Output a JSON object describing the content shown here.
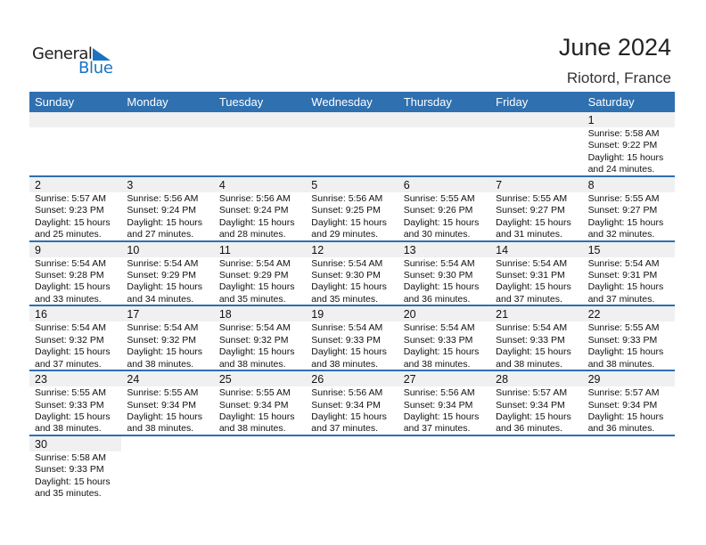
{
  "logo": {
    "line1": "General",
    "line2": "Blue"
  },
  "header": {
    "title": "June 2024",
    "location": "Riotord, France"
  },
  "weekdays": [
    "Sunday",
    "Monday",
    "Tuesday",
    "Wednesday",
    "Thursday",
    "Friday",
    "Saturday"
  ],
  "colors": {
    "header_bg": "#2e70b0",
    "strip_bg": "#f0f0f0",
    "logo_blue": "#1a73c0"
  },
  "weeks": [
    [
      null,
      null,
      null,
      null,
      null,
      null,
      {
        "day": "1",
        "sunrise": "Sunrise: 5:58 AM",
        "sunset": "Sunset: 9:22 PM",
        "daylight1": "Daylight: 15 hours",
        "daylight2": "and 24 minutes."
      }
    ],
    [
      {
        "day": "2",
        "sunrise": "Sunrise: 5:57 AM",
        "sunset": "Sunset: 9:23 PM",
        "daylight1": "Daylight: 15 hours",
        "daylight2": "and 25 minutes."
      },
      {
        "day": "3",
        "sunrise": "Sunrise: 5:56 AM",
        "sunset": "Sunset: 9:24 PM",
        "daylight1": "Daylight: 15 hours",
        "daylight2": "and 27 minutes."
      },
      {
        "day": "4",
        "sunrise": "Sunrise: 5:56 AM",
        "sunset": "Sunset: 9:24 PM",
        "daylight1": "Daylight: 15 hours",
        "daylight2": "and 28 minutes."
      },
      {
        "day": "5",
        "sunrise": "Sunrise: 5:56 AM",
        "sunset": "Sunset: 9:25 PM",
        "daylight1": "Daylight: 15 hours",
        "daylight2": "and 29 minutes."
      },
      {
        "day": "6",
        "sunrise": "Sunrise: 5:55 AM",
        "sunset": "Sunset: 9:26 PM",
        "daylight1": "Daylight: 15 hours",
        "daylight2": "and 30 minutes."
      },
      {
        "day": "7",
        "sunrise": "Sunrise: 5:55 AM",
        "sunset": "Sunset: 9:27 PM",
        "daylight1": "Daylight: 15 hours",
        "daylight2": "and 31 minutes."
      },
      {
        "day": "8",
        "sunrise": "Sunrise: 5:55 AM",
        "sunset": "Sunset: 9:27 PM",
        "daylight1": "Daylight: 15 hours",
        "daylight2": "and 32 minutes."
      }
    ],
    [
      {
        "day": "9",
        "sunrise": "Sunrise: 5:54 AM",
        "sunset": "Sunset: 9:28 PM",
        "daylight1": "Daylight: 15 hours",
        "daylight2": "and 33 minutes."
      },
      {
        "day": "10",
        "sunrise": "Sunrise: 5:54 AM",
        "sunset": "Sunset: 9:29 PM",
        "daylight1": "Daylight: 15 hours",
        "daylight2": "and 34 minutes."
      },
      {
        "day": "11",
        "sunrise": "Sunrise: 5:54 AM",
        "sunset": "Sunset: 9:29 PM",
        "daylight1": "Daylight: 15 hours",
        "daylight2": "and 35 minutes."
      },
      {
        "day": "12",
        "sunrise": "Sunrise: 5:54 AM",
        "sunset": "Sunset: 9:30 PM",
        "daylight1": "Daylight: 15 hours",
        "daylight2": "and 35 minutes."
      },
      {
        "day": "13",
        "sunrise": "Sunrise: 5:54 AM",
        "sunset": "Sunset: 9:30 PM",
        "daylight1": "Daylight: 15 hours",
        "daylight2": "and 36 minutes."
      },
      {
        "day": "14",
        "sunrise": "Sunrise: 5:54 AM",
        "sunset": "Sunset: 9:31 PM",
        "daylight1": "Daylight: 15 hours",
        "daylight2": "and 37 minutes."
      },
      {
        "day": "15",
        "sunrise": "Sunrise: 5:54 AM",
        "sunset": "Sunset: 9:31 PM",
        "daylight1": "Daylight: 15 hours",
        "daylight2": "and 37 minutes."
      }
    ],
    [
      {
        "day": "16",
        "sunrise": "Sunrise: 5:54 AM",
        "sunset": "Sunset: 9:32 PM",
        "daylight1": "Daylight: 15 hours",
        "daylight2": "and 37 minutes."
      },
      {
        "day": "17",
        "sunrise": "Sunrise: 5:54 AM",
        "sunset": "Sunset: 9:32 PM",
        "daylight1": "Daylight: 15 hours",
        "daylight2": "and 38 minutes."
      },
      {
        "day": "18",
        "sunrise": "Sunrise: 5:54 AM",
        "sunset": "Sunset: 9:32 PM",
        "daylight1": "Daylight: 15 hours",
        "daylight2": "and 38 minutes."
      },
      {
        "day": "19",
        "sunrise": "Sunrise: 5:54 AM",
        "sunset": "Sunset: 9:33 PM",
        "daylight1": "Daylight: 15 hours",
        "daylight2": "and 38 minutes."
      },
      {
        "day": "20",
        "sunrise": "Sunrise: 5:54 AM",
        "sunset": "Sunset: 9:33 PM",
        "daylight1": "Daylight: 15 hours",
        "daylight2": "and 38 minutes."
      },
      {
        "day": "21",
        "sunrise": "Sunrise: 5:54 AM",
        "sunset": "Sunset: 9:33 PM",
        "daylight1": "Daylight: 15 hours",
        "daylight2": "and 38 minutes."
      },
      {
        "day": "22",
        "sunrise": "Sunrise: 5:55 AM",
        "sunset": "Sunset: 9:33 PM",
        "daylight1": "Daylight: 15 hours",
        "daylight2": "and 38 minutes."
      }
    ],
    [
      {
        "day": "23",
        "sunrise": "Sunrise: 5:55 AM",
        "sunset": "Sunset: 9:33 PM",
        "daylight1": "Daylight: 15 hours",
        "daylight2": "and 38 minutes."
      },
      {
        "day": "24",
        "sunrise": "Sunrise: 5:55 AM",
        "sunset": "Sunset: 9:34 PM",
        "daylight1": "Daylight: 15 hours",
        "daylight2": "and 38 minutes."
      },
      {
        "day": "25",
        "sunrise": "Sunrise: 5:55 AM",
        "sunset": "Sunset: 9:34 PM",
        "daylight1": "Daylight: 15 hours",
        "daylight2": "and 38 minutes."
      },
      {
        "day": "26",
        "sunrise": "Sunrise: 5:56 AM",
        "sunset": "Sunset: 9:34 PM",
        "daylight1": "Daylight: 15 hours",
        "daylight2": "and 37 minutes."
      },
      {
        "day": "27",
        "sunrise": "Sunrise: 5:56 AM",
        "sunset": "Sunset: 9:34 PM",
        "daylight1": "Daylight: 15 hours",
        "daylight2": "and 37 minutes."
      },
      {
        "day": "28",
        "sunrise": "Sunrise: 5:57 AM",
        "sunset": "Sunset: 9:34 PM",
        "daylight1": "Daylight: 15 hours",
        "daylight2": "and 36 minutes."
      },
      {
        "day": "29",
        "sunrise": "Sunrise: 5:57 AM",
        "sunset": "Sunset: 9:34 PM",
        "daylight1": "Daylight: 15 hours",
        "daylight2": "and 36 minutes."
      }
    ],
    [
      {
        "day": "30",
        "sunrise": "Sunrise: 5:58 AM",
        "sunset": "Sunset: 9:33 PM",
        "daylight1": "Daylight: 15 hours",
        "daylight2": "and 35 minutes."
      },
      null,
      null,
      null,
      null,
      null,
      null
    ]
  ]
}
